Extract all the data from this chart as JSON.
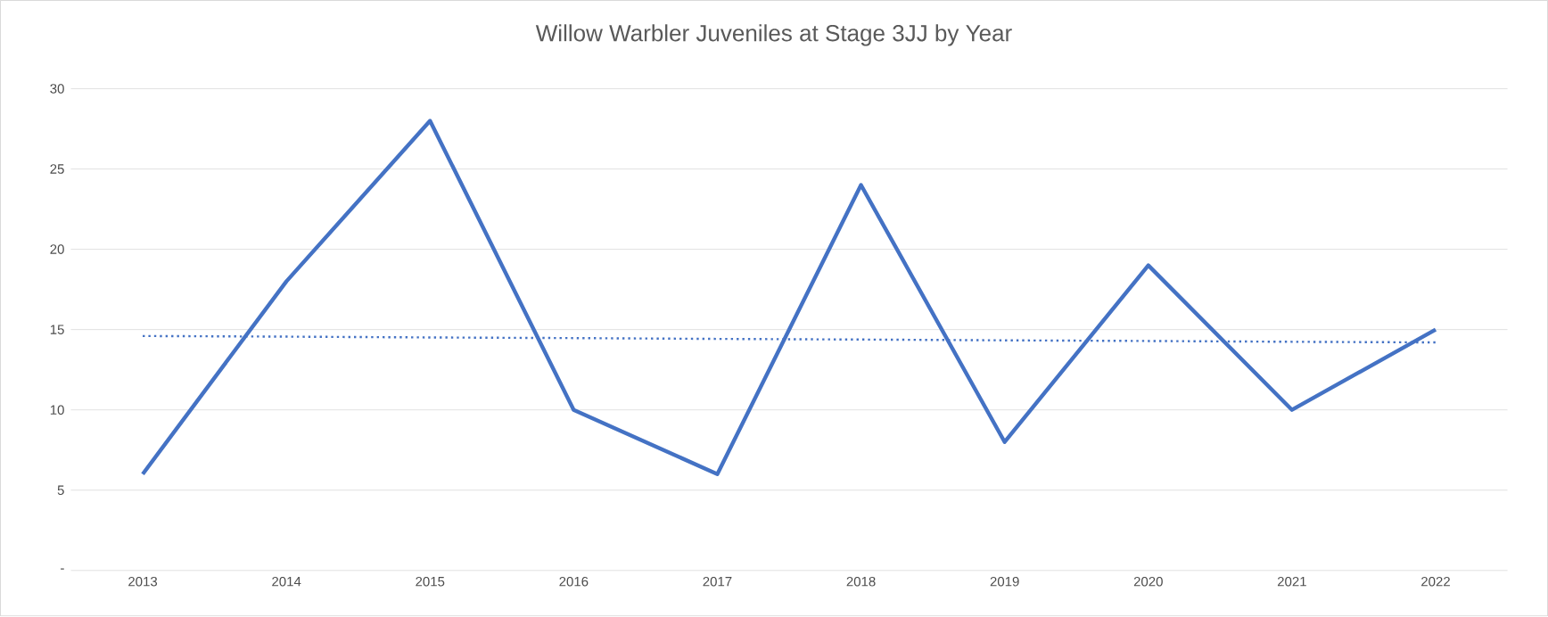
{
  "chart_data": {
    "type": "line",
    "title": "Willow Warbler Juveniles at Stage 3JJ by Year",
    "categories": [
      "2013",
      "2014",
      "2015",
      "2016",
      "2017",
      "2018",
      "2019",
      "2020",
      "2021",
      "2022"
    ],
    "series": [
      {
        "color": "#4472c4",
        "values": [
          6,
          18,
          28,
          10,
          6,
          24,
          8,
          19,
          10,
          15
        ],
        "line_style": "solid"
      },
      {
        "color": "#4472c4",
        "values": [
          14.6,
          14.56,
          14.51,
          14.47,
          14.42,
          14.38,
          14.33,
          14.29,
          14.24,
          14.2
        ],
        "line_style": "dotted"
      }
    ],
    "ylim": [
      0,
      30
    ],
    "yticks": [
      {
        "value": 0,
        "label": "-"
      },
      5,
      10,
      15,
      20,
      25,
      30
    ],
    "grid": "y"
  }
}
